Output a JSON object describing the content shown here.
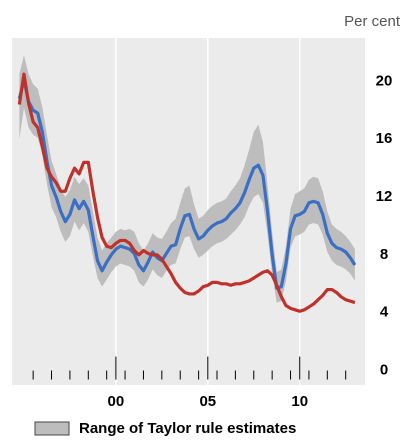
{
  "chart_data": {
    "type": "line",
    "unit_label": "Per cent",
    "x": [
      1994.75,
      1995,
      1995.25,
      1995.5,
      1995.75,
      1996,
      1996.25,
      1996.5,
      1996.75,
      1997,
      1997.25,
      1997.5,
      1997.75,
      1998,
      1998.25,
      1998.5,
      1998.75,
      1999,
      1999.25,
      1999.5,
      1999.75,
      2000,
      2000.25,
      2000.5,
      2000.75,
      2001,
      2001.25,
      2001.5,
      2001.75,
      2002,
      2002.25,
      2002.5,
      2002.75,
      2003,
      2003.25,
      2003.5,
      2003.75,
      2004,
      2004.25,
      2004.5,
      2004.75,
      2005,
      2005.25,
      2005.5,
      2005.75,
      2006,
      2006.25,
      2006.5,
      2006.75,
      2007,
      2007.25,
      2007.5,
      2007.75,
      2008,
      2008.25,
      2008.5,
      2008.75,
      2009,
      2009.25,
      2009.5,
      2009.75,
      2010,
      2010.25,
      2010.5,
      2010.75,
      2011,
      2011.25,
      2011.5,
      2011.75,
      2012,
      2012.25,
      2012.5,
      2012.75,
      2013
    ],
    "band": {
      "name": "Range of Taylor rule estimates",
      "color": "#bdbdbd",
      "upper": [
        20.5,
        21.8,
        20.5,
        19.8,
        19.5,
        18.2,
        16.3,
        14.5,
        13.6,
        12.6,
        12,
        12.5,
        13.4,
        12.9,
        13.3,
        12.8,
        11,
        9.2,
        8.3,
        8.8,
        9.2,
        9.6,
        9.8,
        9.7,
        9.8,
        9.6,
        8.8,
        8.3,
        8.8,
        9.5,
        9.2,
        9.1,
        9.6,
        10.2,
        10.5,
        11.6,
        12.6,
        12.8,
        11.5,
        10.5,
        10.7,
        11.1,
        11.4,
        11.6,
        11.7,
        11.9,
        12.4,
        12.8,
        13.3,
        14.2,
        15.3,
        16.5,
        17,
        15.8,
        12.8,
        9.6,
        6.8,
        7,
        8.6,
        11.2,
        12.2,
        12.4,
        12.6,
        13.2,
        13.4,
        13.3,
        12.4,
        11,
        10.1,
        9.8,
        9.6,
        9.3,
        8.9,
        8.4
      ],
      "lower": [
        16,
        18.2,
        16.8,
        16.3,
        16.1,
        14.9,
        12.9,
        11.3,
        10.6,
        9.6,
        8.9,
        9.3,
        10.3,
        9.7,
        10.2,
        9.6,
        7.9,
        6.4,
        5.8,
        6.3,
        6.8,
        7.2,
        7.4,
        7.3,
        7.2,
        6.9,
        6.1,
        5.8,
        6.3,
        7,
        6.6,
        6.4,
        6.9,
        7.3,
        7.4,
        8.4,
        9.2,
        9.3,
        8.4,
        7.8,
        8,
        8.3,
        8.6,
        8.8,
        8.9,
        9.1,
        9.4,
        9.7,
        10.1,
        10.6,
        11.4,
        12,
        12.2,
        11.6,
        9.4,
        6.7,
        4.7,
        4.8,
        6.2,
        8.5,
        9.3,
        9.4,
        9.6,
        10.1,
        10.2,
        10.1,
        9.4,
        8.2,
        7.6,
        7.3,
        7.2,
        7,
        6.7,
        6.2
      ]
    },
    "series": [
      {
        "color": "#3a6fc4",
        "values": [
          18.8,
          20.1,
          18.6,
          18,
          17.8,
          16.5,
          14.5,
          12.8,
          12,
          11,
          10.3,
          10.8,
          11.8,
          11.2,
          11.7,
          11.1,
          9.3,
          7.6,
          6.9,
          7.5,
          8,
          8.4,
          8.6,
          8.5,
          8.4,
          8.1,
          7.3,
          6.9,
          7.5,
          8.2,
          7.8,
          7.6,
          8.1,
          8.6,
          8.7,
          9.8,
          10.7,
          10.8,
          9.8,
          9.1,
          9.3,
          9.7,
          10,
          10.2,
          10.3,
          10.5,
          10.9,
          11.2,
          11.6,
          12.3,
          13.2,
          14,
          14.2,
          13.5,
          11,
          8,
          5.7,
          5.8,
          7.4,
          9.8,
          10.7,
          10.8,
          11,
          11.6,
          11.7,
          11.6,
          10.8,
          9.5,
          8.8,
          8.5,
          8.4,
          8.2,
          7.8,
          7.3
        ]
      },
      {
        "color": "#c0312b",
        "values": [
          18.4,
          20.5,
          18.5,
          17.2,
          16.8,
          15.5,
          14,
          13.4,
          13,
          12.4,
          12.4,
          13.3,
          14,
          13.6,
          14.4,
          14.4,
          12.4,
          10.6,
          9.2,
          8.6,
          8.5,
          8.8,
          9,
          9,
          8.8,
          8.3,
          8,
          8.3,
          8.1,
          8,
          8,
          7.7,
          7.2,
          6.7,
          6.1,
          5.7,
          5.4,
          5.3,
          5.3,
          5.5,
          5.8,
          5.9,
          6.1,
          6.1,
          6,
          6,
          5.9,
          6,
          6,
          6.1,
          6.2,
          6.4,
          6.6,
          6.8,
          6.9,
          6.6,
          5.9,
          5.1,
          4.5,
          4.3,
          4.2,
          4.1,
          4.2,
          4.4,
          4.6,
          4.9,
          5.2,
          5.6,
          5.6,
          5.4,
          5.1,
          4.9,
          4.8,
          4.7
        ]
      }
    ],
    "xlim": [
      1994.35,
      2013.55
    ],
    "xticks": [
      {
        "value": 2000,
        "label": "00"
      },
      {
        "value": 2005,
        "label": "05"
      },
      {
        "value": 2010,
        "label": "10"
      }
    ],
    "xminor_ticks": [
      1995.5,
      1996.5,
      1997.5,
      1998.5,
      1999.5,
      2000.5,
      2001.5,
      2002.5,
      2003.5,
      2004.5,
      2005.5,
      2006.5,
      2007.5,
      2008.5,
      2009.5,
      2010.5,
      2011.5,
      2012.5
    ],
    "ylim": [
      -1,
      23
    ],
    "yticks": [
      0,
      4,
      8,
      12,
      16,
      20
    ],
    "grid": "x",
    "plot_background": "#ebebeb"
  }
}
